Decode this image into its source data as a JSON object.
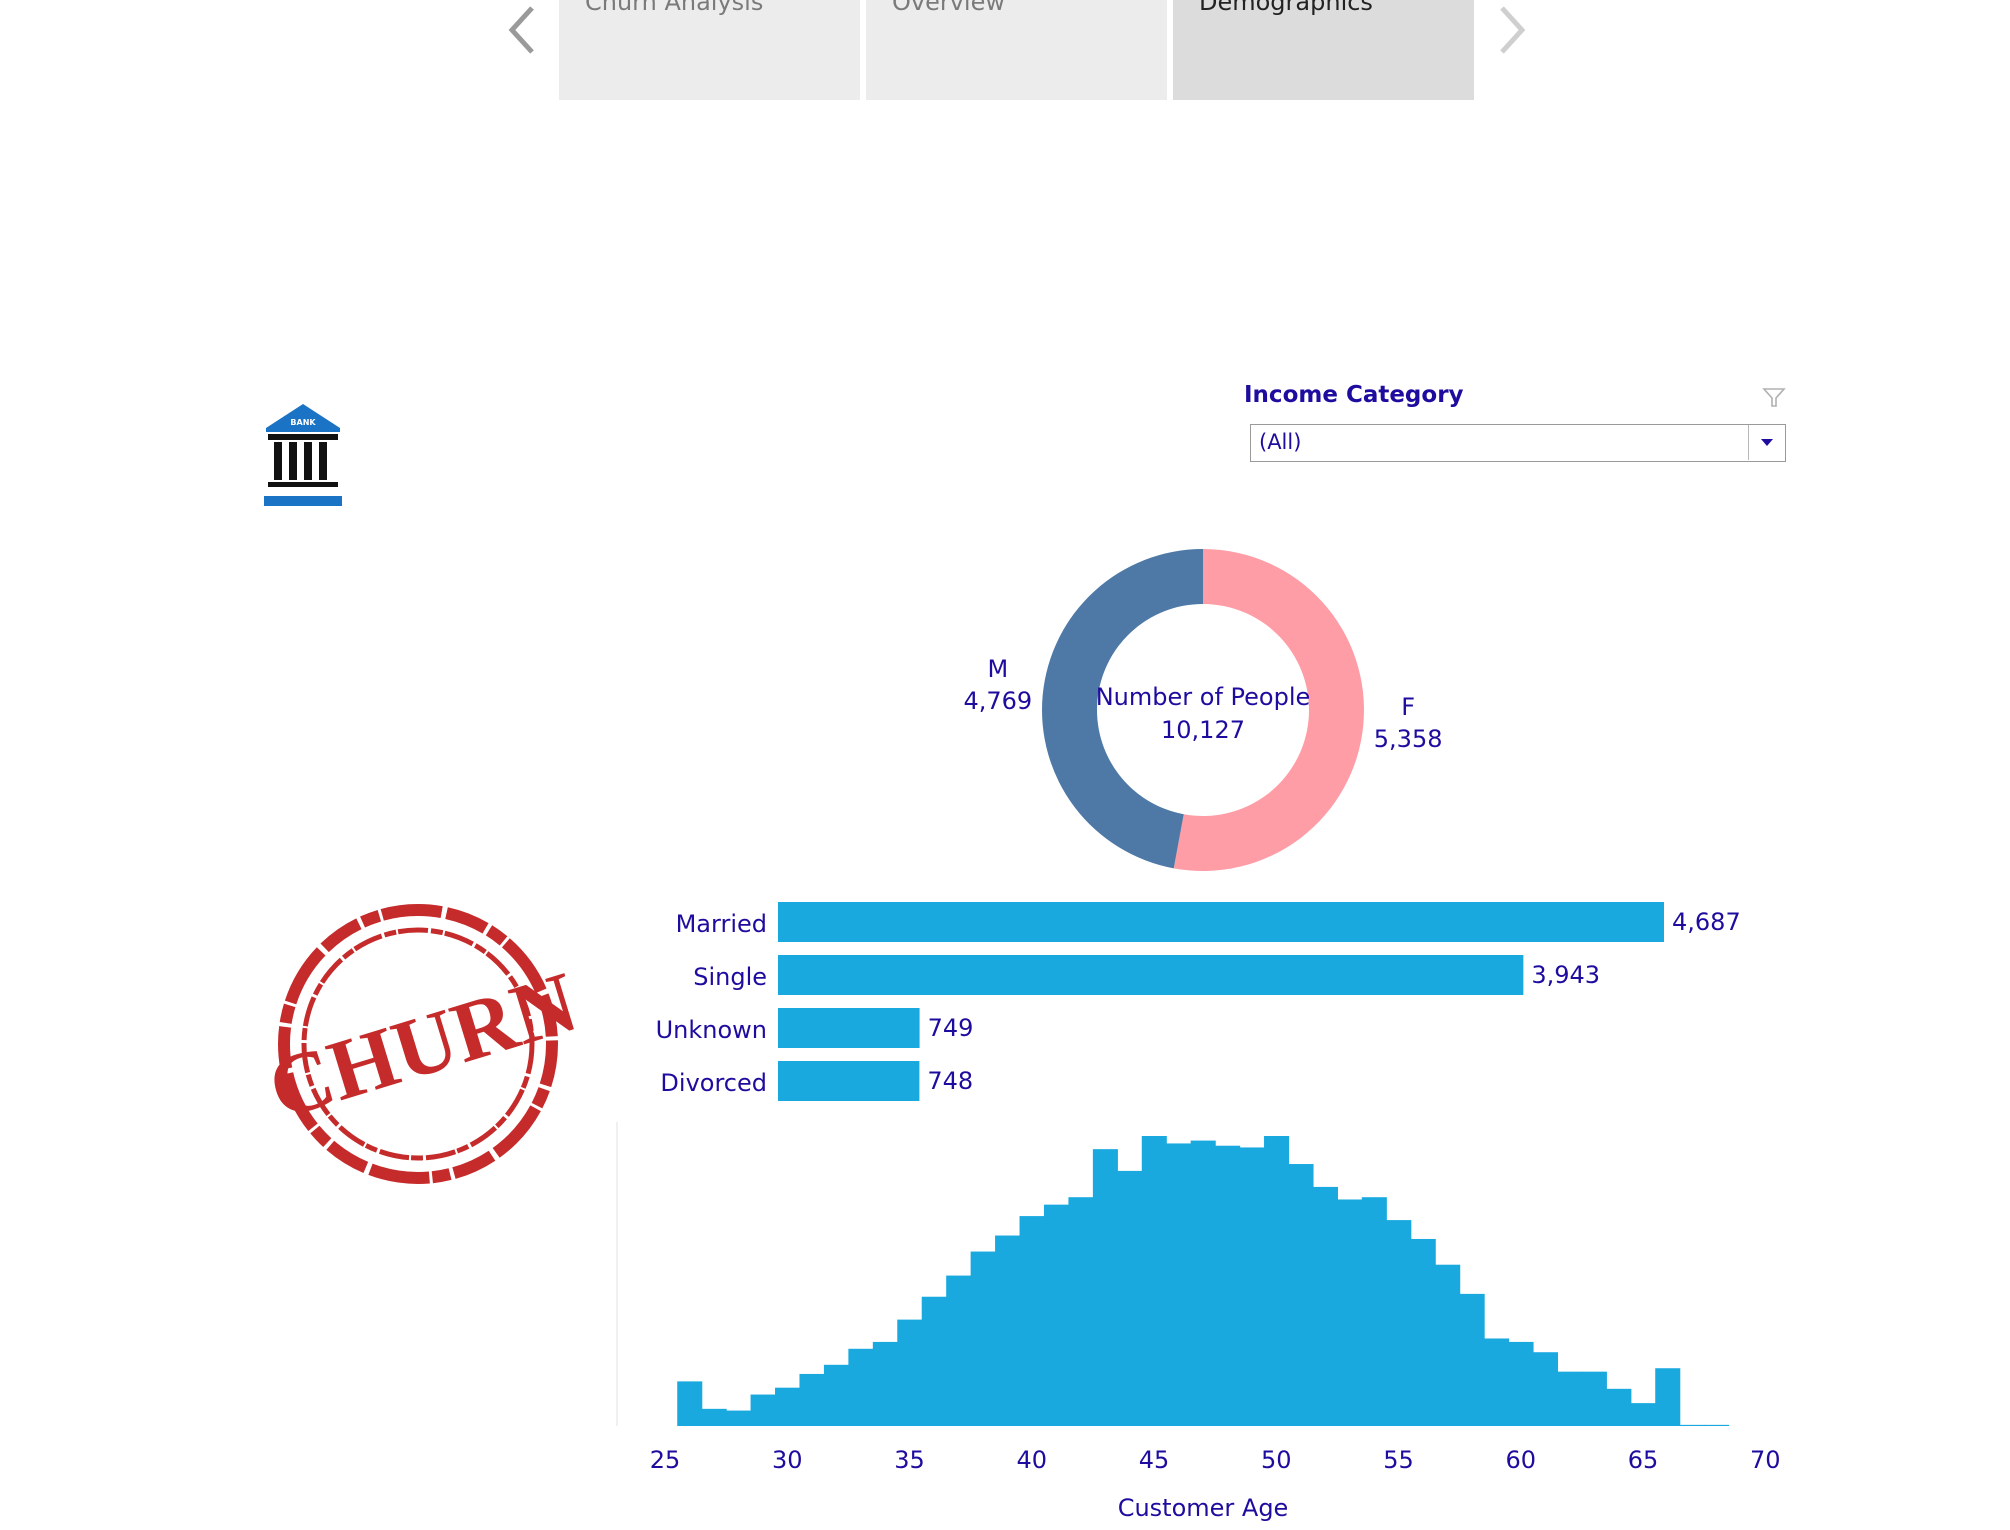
{
  "tabs": [
    {
      "label": "Churn Analysis",
      "active": false
    },
    {
      "label": "Overview",
      "active": false
    },
    {
      "label": "Demographics",
      "active": true
    }
  ],
  "filter": {
    "title": "Income Category",
    "value": "(All)"
  },
  "stamp_text": "CHURN",
  "logo_text": "BANK",
  "colors": {
    "accent_text": "#1e0c9e",
    "bar": "#1aa9df",
    "male": "#4e79a7",
    "female": "#ff9da7"
  },
  "chart_data": [
    {
      "type": "pie",
      "center_label": "Number of People",
      "center_value": "10,127",
      "slices": [
        {
          "label": "F",
          "value": 5358,
          "display": "5,358",
          "color": "#ff9da7"
        },
        {
          "label": "M",
          "value": 4769,
          "display": "4,769",
          "color": "#4e79a7"
        }
      ]
    },
    {
      "type": "bar",
      "orientation": "horizontal",
      "categories": [
        "Married",
        "Single",
        "Unknown",
        "Divorced"
      ],
      "values": [
        4687,
        3943,
        749,
        748
      ],
      "labels": [
        "4,687",
        "3,943",
        "749",
        "748"
      ]
    },
    {
      "type": "bar",
      "subtype": "histogram",
      "xlabel": "Customer Age",
      "xlim": [
        25,
        70
      ],
      "xticks": [
        25,
        30,
        35,
        40,
        45,
        50,
        55,
        60,
        65,
        70
      ],
      "bins": [
        26,
        27,
        28,
        29,
        30,
        31,
        32,
        33,
        34,
        35,
        36,
        37,
        38,
        39,
        40,
        41,
        42,
        43,
        44,
        45,
        46,
        47,
        48,
        49,
        50,
        51,
        52,
        53,
        54,
        55,
        56,
        57,
        58,
        59,
        60,
        61,
        62,
        63,
        64,
        65,
        66,
        67,
        68
      ],
      "values": [
        78,
        30,
        27,
        55,
        67,
        91,
        107,
        135,
        147,
        186,
        226,
        263,
        305,
        333,
        367,
        387,
        400,
        484,
        446,
        507,
        494,
        499,
        490,
        487,
        507,
        458,
        418,
        396,
        400,
        360,
        327,
        282,
        231,
        153,
        147,
        129,
        95,
        95,
        65,
        40,
        101,
        2,
        2
      ]
    }
  ]
}
